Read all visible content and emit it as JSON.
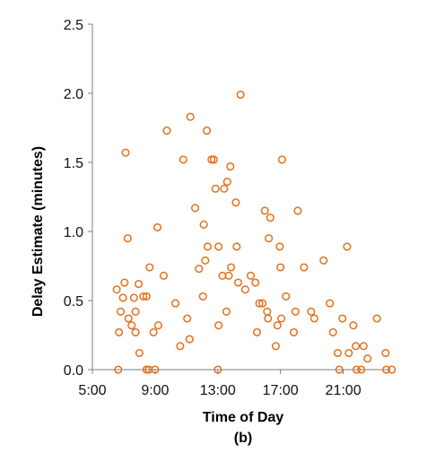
{
  "chart_data": {
    "type": "scatter",
    "xlabel": "Time of Day",
    "ylabel": "Delay Estimate (minutes)",
    "caption": "(b)",
    "x_unit": "hours",
    "xlim": [
      5,
      24
    ],
    "ylim": [
      0,
      2.5
    ],
    "x_ticks": [
      {
        "value": 5,
        "label": "5:00"
      },
      {
        "value": 9,
        "label": "9:00"
      },
      {
        "value": 13,
        "label": "13:00"
      },
      {
        "value": 17,
        "label": "17:00"
      },
      {
        "value": 21,
        "label": "21:00"
      }
    ],
    "y_ticks": [
      {
        "value": 0,
        "label": "0.0"
      },
      {
        "value": 0.5,
        "label": "0.5"
      },
      {
        "value": 1.0,
        "label": "1.0"
      },
      {
        "value": 1.5,
        "label": "1.5"
      },
      {
        "value": 2.0,
        "label": "2.0"
      },
      {
        "value": 2.5,
        "label": "2.5"
      }
    ],
    "grid": false,
    "legend": "none",
    "marker": "hollow-circle",
    "color": "#E2711D",
    "points": [
      [
        6.55,
        0.58
      ],
      [
        6.7,
        0.27
      ],
      [
        6.65,
        0.0
      ],
      [
        6.8,
        0.42
      ],
      [
        6.95,
        0.52
      ],
      [
        7.05,
        0.63
      ],
      [
        7.12,
        1.57
      ],
      [
        7.25,
        0.95
      ],
      [
        7.3,
        0.37
      ],
      [
        7.5,
        0.32
      ],
      [
        7.65,
        0.52
      ],
      [
        7.75,
        0.27
      ],
      [
        7.75,
        0.42
      ],
      [
        7.95,
        0.62
      ],
      [
        8.0,
        0.12
      ],
      [
        8.25,
        0.53
      ],
      [
        8.45,
        0.53
      ],
      [
        8.45,
        0.0
      ],
      [
        8.6,
        0.0
      ],
      [
        8.65,
        0.74
      ],
      [
        8.9,
        0.27
      ],
      [
        9.0,
        0.0
      ],
      [
        9.15,
        1.03
      ],
      [
        9.2,
        0.32
      ],
      [
        9.55,
        0.68
      ],
      [
        9.75,
        1.73
      ],
      [
        10.3,
        0.48
      ],
      [
        10.6,
        0.17
      ],
      [
        10.8,
        1.52
      ],
      [
        11.05,
        0.37
      ],
      [
        11.25,
        1.83
      ],
      [
        11.2,
        0.22
      ],
      [
        11.55,
        1.17
      ],
      [
        11.8,
        0.73
      ],
      [
        12.05,
        0.53
      ],
      [
        12.1,
        1.05
      ],
      [
        12.2,
        0.79
      ],
      [
        12.3,
        1.73
      ],
      [
        12.35,
        0.89
      ],
      [
        12.6,
        1.52
      ],
      [
        12.75,
        1.52
      ],
      [
        12.85,
        1.31
      ],
      [
        13.0,
        0.0
      ],
      [
        13.05,
        0.89
      ],
      [
        13.05,
        0.32
      ],
      [
        13.3,
        0.68
      ],
      [
        13.4,
        1.31
      ],
      [
        13.55,
        0.42
      ],
      [
        13.6,
        1.36
      ],
      [
        13.7,
        0.68
      ],
      [
        13.8,
        1.47
      ],
      [
        13.85,
        0.74
      ],
      [
        14.15,
        1.21
      ],
      [
        14.2,
        0.89
      ],
      [
        14.3,
        0.63
      ],
      [
        14.45,
        1.99
      ],
      [
        14.75,
        0.58
      ],
      [
        15.1,
        0.68
      ],
      [
        15.4,
        0.63
      ],
      [
        15.5,
        0.27
      ],
      [
        15.65,
        0.48
      ],
      [
        15.85,
        0.48
      ],
      [
        16.0,
        1.15
      ],
      [
        16.15,
        0.42
      ],
      [
        16.2,
        0.37
      ],
      [
        16.25,
        0.95
      ],
      [
        16.35,
        1.1
      ],
      [
        16.7,
        0.17
      ],
      [
        16.8,
        0.32
      ],
      [
        16.95,
        0.89
      ],
      [
        17.0,
        0.74
      ],
      [
        17.05,
        0.37
      ],
      [
        17.1,
        1.52
      ],
      [
        17.35,
        0.53
      ],
      [
        17.85,
        0.27
      ],
      [
        17.95,
        0.42
      ],
      [
        18.1,
        1.15
      ],
      [
        18.5,
        0.74
      ],
      [
        18.95,
        0.42
      ],
      [
        19.15,
        0.37
      ],
      [
        19.75,
        0.79
      ],
      [
        20.15,
        0.48
      ],
      [
        20.35,
        0.27
      ],
      [
        20.65,
        0.12
      ],
      [
        20.75,
        0.0
      ],
      [
        20.95,
        0.37
      ],
      [
        21.25,
        0.89
      ],
      [
        21.35,
        0.12
      ],
      [
        21.65,
        0.32
      ],
      [
        21.8,
        0.17
      ],
      [
        21.85,
        0.0
      ],
      [
        22.15,
        0.0
      ],
      [
        22.3,
        0.17
      ],
      [
        22.55,
        0.08
      ],
      [
        23.15,
        0.37
      ],
      [
        23.7,
        0.12
      ],
      [
        23.75,
        0.0
      ],
      [
        24.1,
        0.0
      ]
    ]
  }
}
